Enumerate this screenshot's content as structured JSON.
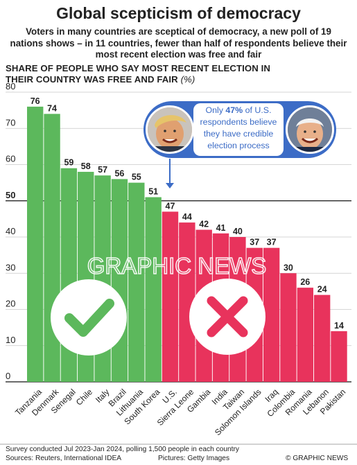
{
  "header": {
    "title": "Global scepticism of democracy",
    "subtitle": "Voters in many countries are sceptical of democracy, a new poll of 19 nations shows – in 11 countries, fewer than half of respondents believe their most recent election was free and fair",
    "ytitle": "SHARE OF PEOPLE WHO SAY MOST RECENT ELECTION IN THEIR COUNTRY WAS FREE AND FAIR",
    "ytitle_unit": "(%)"
  },
  "callout": {
    "prefix": "Only ",
    "highlight": "47%",
    "suffix": " of U.S. respondents believe they have credible election process"
  },
  "watermark": "GRAPHIC NEWS",
  "footer": {
    "note": "Survey conducted Jul 2023-Jan 2024, polling 1,500 people in each country",
    "sources": "Sources: Reuters, International IDEA",
    "pictures": "Pictures: Getty Images",
    "credit": "© GRAPHIC NEWS"
  },
  "colors": {
    "green": "#5cb85c",
    "red": "#e8335c",
    "callout_blue": "#3c6cc6"
  },
  "icons": [
    "checkmark-icon",
    "cross-icon",
    "trump-photo",
    "biden-photo"
  ],
  "chart_data": {
    "type": "bar",
    "categories": [
      "Tanzania",
      "Denmark",
      "Senegal",
      "Chile",
      "Italy",
      "Brazil",
      "Lithuania",
      "South Korea",
      "U.S.",
      "Sierra Leone",
      "Gambia",
      "India",
      "Taiwan",
      "Solomon Islands",
      "Iraq",
      "Colombia",
      "Romania",
      "Lebanon",
      "Pakistan"
    ],
    "values": [
      76,
      74,
      59,
      58,
      57,
      56,
      55,
      51,
      47,
      44,
      42,
      41,
      40,
      37,
      37,
      30,
      26,
      24,
      14
    ],
    "value_labels": [
      "76",
      "74",
      "59",
      "58",
      "57",
      "56",
      "55",
      "51",
      "47",
      "44",
      "42",
      "41",
      "40",
      "37",
      "37",
      "30",
      "26",
      "24",
      "14"
    ],
    "ylim": [
      0,
      80
    ],
    "yticks": [
      "0",
      "10",
      "20",
      "30",
      "40",
      "50",
      "60",
      "70",
      "80"
    ],
    "threshold": 50,
    "grid": true
  }
}
